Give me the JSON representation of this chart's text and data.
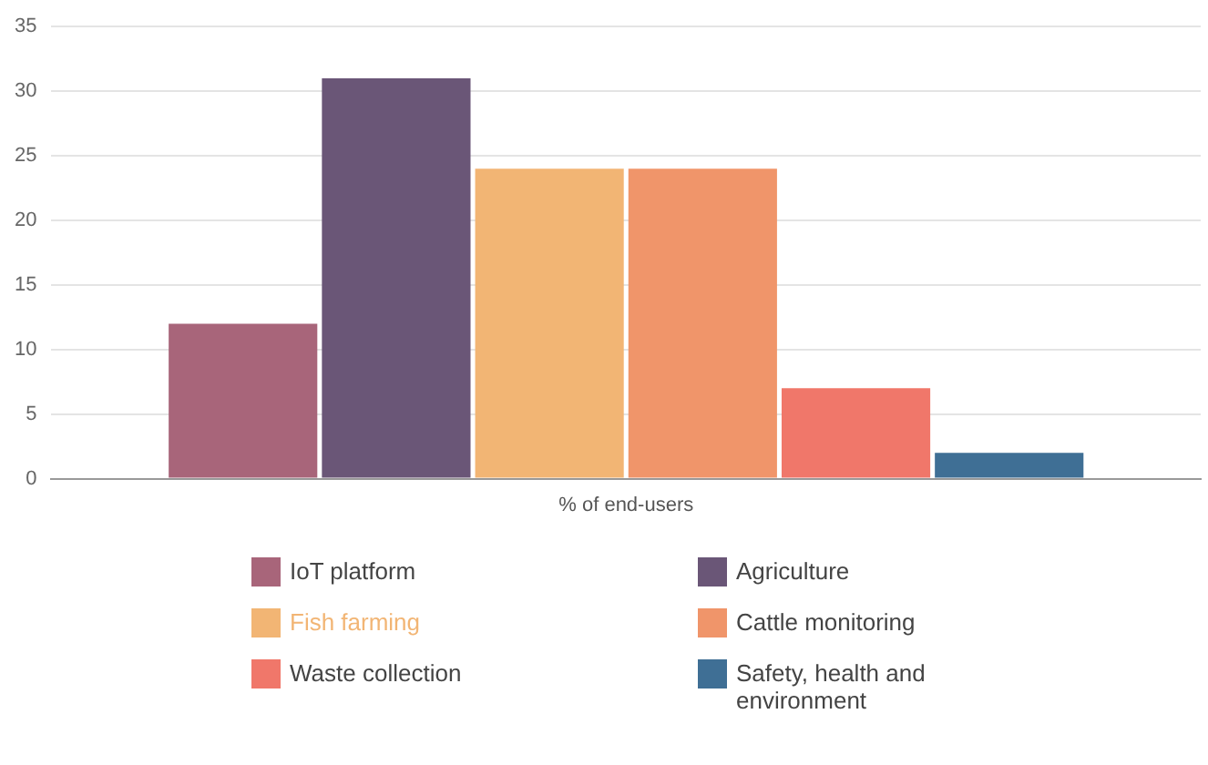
{
  "chart_data": {
    "type": "bar",
    "categories": [
      "% of end-users"
    ],
    "series": [
      {
        "name": "IoT platform",
        "color": "#a8657a",
        "values": [
          12
        ]
      },
      {
        "name": "Agriculture",
        "color": "#6a5677",
        "values": [
          31
        ]
      },
      {
        "name": "Fish farming",
        "color": "#f2b574",
        "values": [
          24
        ]
      },
      {
        "name": "Cattle monitoring",
        "color": "#f0956a",
        "values": [
          24
        ]
      },
      {
        "name": "Waste collection",
        "color": "#f0776a",
        "values": [
          7
        ]
      },
      {
        "name": "Safety, health and environment",
        "color": "#3f6f95",
        "values": [
          2
        ]
      }
    ],
    "ylim": [
      0,
      35
    ],
    "yticks": [
      0,
      5,
      10,
      15,
      20,
      25,
      30,
      35
    ],
    "grid": "y",
    "legend": "bottom"
  }
}
